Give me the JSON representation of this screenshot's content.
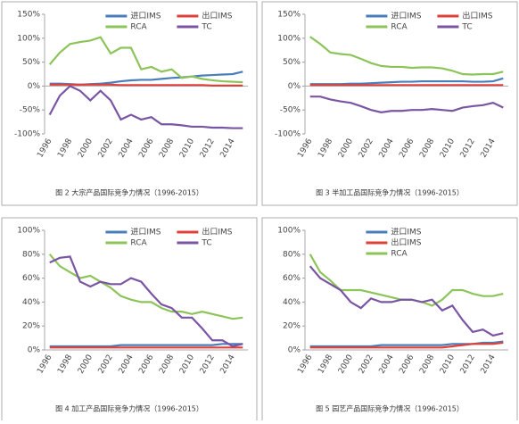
{
  "chart_data": [
    {
      "type": "line",
      "caption": "图 2  大宗产品国际竞争力情况（1996-2015）",
      "categories": [
        "1996",
        null,
        "1998",
        null,
        "2000",
        null,
        "2002",
        null,
        "2004",
        null,
        "2006",
        null,
        "2008",
        null,
        "2010",
        null,
        "2012",
        null,
        "2014",
        null
      ],
      "ylim": [
        -100,
        150
      ],
      "yticks": [
        {
          "value": -100,
          "label": "-100%"
        },
        {
          "value": -50,
          "label": "-50%"
        },
        {
          "value": 0,
          "label": "0%"
        },
        {
          "value": 50,
          "label": "50%"
        },
        {
          "value": 100,
          "label": "100%"
        },
        {
          "value": 150,
          "label": "150%"
        }
      ],
      "legend_columns": 2,
      "series": [
        {
          "name": "进口IMS",
          "color": "#4a7ebb",
          "values": [
            5,
            5,
            4,
            3,
            4,
            5,
            7,
            10,
            12,
            13,
            13,
            15,
            17,
            18,
            20,
            22,
            23,
            24,
            25,
            30
          ]
        },
        {
          "name": "出口IMS",
          "color": "#e0403a",
          "values": [
            3,
            3,
            3,
            3,
            3,
            3,
            3,
            2,
            2,
            2,
            2,
            2,
            2,
            2,
            2,
            2,
            1,
            1,
            1,
            1
          ]
        },
        {
          "name": "RCA",
          "color": "#8dc45a",
          "values": [
            45,
            70,
            88,
            92,
            95,
            102,
            68,
            80,
            80,
            35,
            40,
            30,
            35,
            17,
            20,
            15,
            12,
            10,
            9,
            8
          ]
        },
        {
          "name": "TC",
          "color": "#7a55a3",
          "values": [
            -60,
            -20,
            0,
            -10,
            -30,
            -10,
            -30,
            -70,
            -60,
            -70,
            -65,
            -80,
            -80,
            -82,
            -85,
            -85,
            -87,
            -87,
            -88,
            -88
          ]
        }
      ]
    },
    {
      "type": "line",
      "caption": "图 3  半加工品国际竞争力情况（1996-2015）",
      "categories": [
        "1996",
        null,
        "1998",
        null,
        "2000",
        null,
        "2002",
        null,
        "2004",
        null,
        "2006",
        null,
        "2008",
        null,
        "2010",
        null,
        "2012",
        null,
        "2014",
        null
      ],
      "ylim": [
        -100,
        150
      ],
      "yticks": [
        {
          "value": -100,
          "label": "-100%"
        },
        {
          "value": -50,
          "label": "-50%"
        },
        {
          "value": 0,
          "label": "0%"
        },
        {
          "value": 50,
          "label": "50%"
        },
        {
          "value": 100,
          "label": "100%"
        },
        {
          "value": 150,
          "label": "150%"
        }
      ],
      "legend_columns": 2,
      "series": [
        {
          "name": "进口IMS",
          "color": "#4a7ebb",
          "values": [
            4,
            4,
            4,
            4,
            5,
            5,
            6,
            7,
            8,
            9,
            9,
            10,
            10,
            10,
            10,
            10,
            9,
            9,
            10,
            16
          ]
        },
        {
          "name": "出口IMS",
          "color": "#e0403a",
          "values": [
            2,
            2,
            2,
            2,
            2,
            2,
            2,
            2,
            2,
            2,
            2,
            2,
            2,
            2,
            2,
            2,
            2,
            2,
            2,
            2
          ]
        },
        {
          "name": "RCA",
          "color": "#8dc45a",
          "values": [
            103,
            88,
            70,
            67,
            65,
            57,
            48,
            42,
            40,
            40,
            38,
            39,
            39,
            37,
            32,
            25,
            24,
            25,
            25,
            30
          ]
        },
        {
          "name": "TC",
          "color": "#7a55a3",
          "values": [
            -22,
            -22,
            -28,
            -32,
            -35,
            -42,
            -50,
            -55,
            -52,
            -52,
            -50,
            -50,
            -48,
            -50,
            -52,
            -45,
            -42,
            -40,
            -35,
            -45
          ]
        }
      ]
    },
    {
      "type": "line",
      "caption": "图 4  加工产品国际竞争力情况（1996-2015）",
      "categories": [
        "1996",
        null,
        "1998",
        null,
        "2000",
        null,
        "2002",
        null,
        "2004",
        null,
        "2006",
        null,
        "2008",
        null,
        "2010",
        null,
        "2012",
        null,
        "2014",
        null
      ],
      "ylim": [
        0,
        100
      ],
      "yticks": [
        {
          "value": 0,
          "label": "0%"
        },
        {
          "value": 20,
          "label": "20%"
        },
        {
          "value": 40,
          "label": "40%"
        },
        {
          "value": 60,
          "label": "60%"
        },
        {
          "value": 80,
          "label": "80%"
        },
        {
          "value": 100,
          "label": "100%"
        }
      ],
      "legend_columns": 2,
      "series": [
        {
          "name": "进口IMS",
          "color": "#4a7ebb",
          "values": [
            3,
            3,
            3,
            3,
            3,
            3,
            3,
            4,
            4,
            4,
            4,
            4,
            4,
            4,
            4,
            4,
            4,
            5,
            5,
            5
          ]
        },
        {
          "name": "出口IMS",
          "color": "#e0403a",
          "values": [
            2,
            2,
            2,
            2,
            2,
            2,
            2,
            2,
            2,
            2,
            2,
            2,
            2,
            2,
            2,
            2,
            2,
            2,
            2,
            2
          ]
        },
        {
          "name": "RCA",
          "color": "#8dc45a",
          "values": [
            80,
            70,
            65,
            60,
            62,
            57,
            52,
            45,
            42,
            40,
            40,
            35,
            32,
            32,
            30,
            32,
            30,
            28,
            26,
            27
          ]
        },
        {
          "name": "TC",
          "color": "#7a55a3",
          "values": [
            73,
            77,
            78,
            57,
            53,
            57,
            55,
            55,
            60,
            57,
            47,
            38,
            35,
            27,
            27,
            18,
            8,
            8,
            3,
            5
          ]
        }
      ]
    },
    {
      "type": "line",
      "caption": "图 5  园艺产品国际竞争力情况（1996-2015）",
      "categories": [
        "1996",
        null,
        "1998",
        null,
        "2000",
        null,
        "2002",
        null,
        "2004",
        null,
        "2006",
        null,
        "2008",
        null,
        "2010",
        null,
        "2012",
        null,
        "2014",
        null
      ],
      "ylim": [
        0,
        100
      ],
      "yticks": [
        {
          "value": 0,
          "label": "0%"
        },
        {
          "value": 20,
          "label": "20%"
        },
        {
          "value": 40,
          "label": "40%"
        },
        {
          "value": 60,
          "label": "60%"
        },
        {
          "value": 80,
          "label": "80%"
        },
        {
          "value": 100,
          "label": "100%"
        }
      ],
      "legend_columns": 1,
      "series": [
        {
          "name": "进口IMS",
          "color": "#4a7ebb",
          "values": [
            3,
            3,
            3,
            3,
            3,
            3,
            3,
            4,
            4,
            4,
            4,
            4,
            4,
            4,
            5,
            5,
            5,
            6,
            6,
            7
          ]
        },
        {
          "name": "出口IMS",
          "color": "#e0403a",
          "values": [
            2,
            2,
            2,
            2,
            2,
            2,
            2,
            2,
            2,
            2,
            2,
            2,
            2,
            2,
            3,
            4,
            5,
            5,
            5,
            6
          ]
        },
        {
          "name": "RCA",
          "color": "#8dc45a",
          "values": [
            80,
            65,
            58,
            50,
            50,
            50,
            48,
            46,
            44,
            42,
            42,
            40,
            37,
            42,
            50,
            50,
            47,
            45,
            45,
            47
          ]
        },
        {
          "color": "#7a55a3",
          "values": [
            70,
            60,
            55,
            50,
            40,
            35,
            43,
            40,
            40,
            42,
            42,
            40,
            42,
            33,
            37,
            25,
            15,
            17,
            12,
            14
          ]
        }
      ]
    }
  ]
}
